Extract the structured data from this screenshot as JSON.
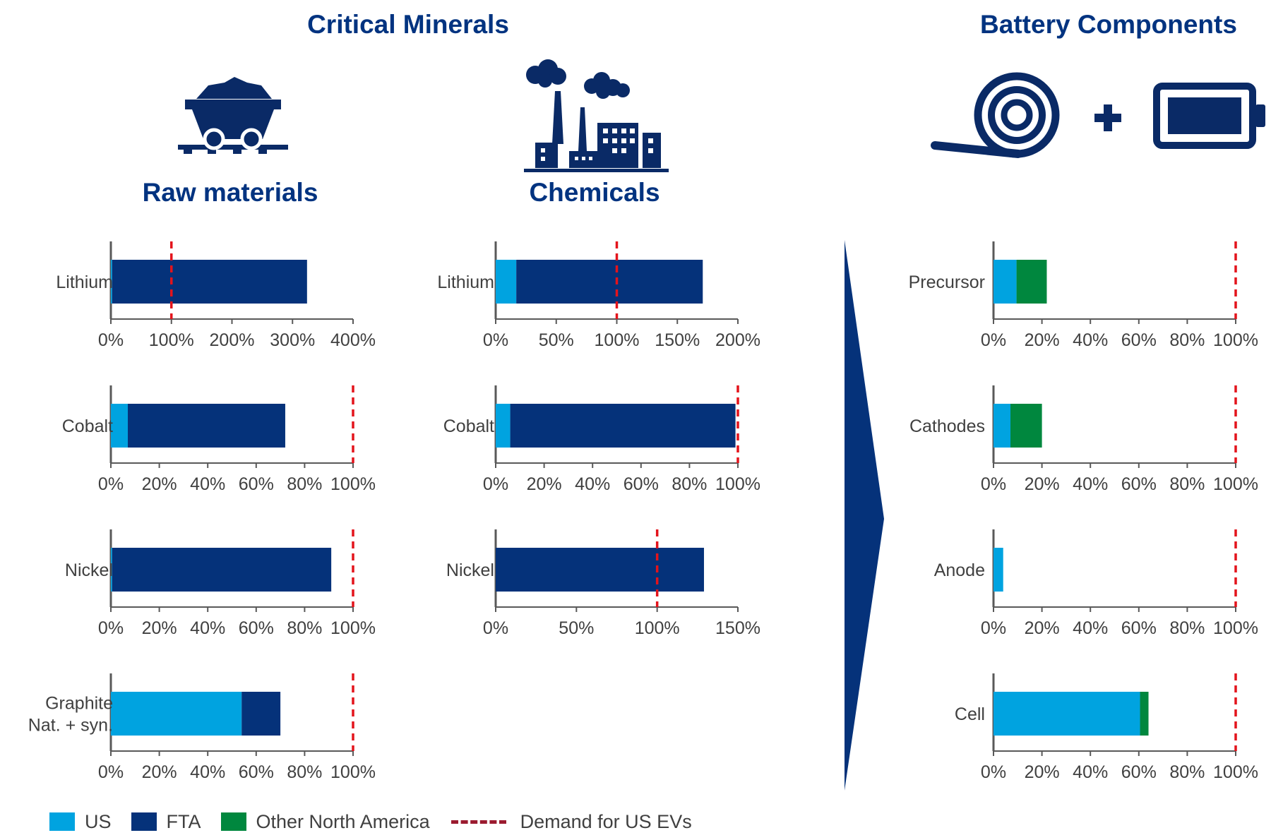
{
  "titles": {
    "critical_minerals": "Critical Minerals",
    "battery_components": "Battery Components",
    "raw_materials": "Raw materials",
    "chemicals": "Chemicals"
  },
  "legend": {
    "us": "US",
    "fta": "FTA",
    "other_na": "Other North America",
    "demand": "Demand for US EVs"
  },
  "colors": {
    "us": "#00a3e0",
    "fta": "#05327a",
    "other_na": "#00873e",
    "demand": "#e3141c",
    "title": "#003380",
    "axis": "#595959"
  },
  "chart_data": [
    {
      "type": "bar",
      "orientation": "horizontal",
      "stacked": true,
      "group": "Raw materials",
      "category": "Lithium",
      "xlim": [
        0,
        4
      ],
      "ticks": [
        "0%",
        "100%",
        "200%",
        "300%",
        "400%"
      ],
      "series": [
        {
          "name": "US",
          "value": 0.02
        },
        {
          "name": "FTA",
          "value": 3.22
        },
        {
          "name": "Other North America",
          "value": 0
        }
      ],
      "demand": 1.0
    },
    {
      "type": "bar",
      "orientation": "horizontal",
      "stacked": true,
      "group": "Raw materials",
      "category": "Cobalt",
      "xlim": [
        0,
        1
      ],
      "ticks": [
        "0%",
        "20%",
        "40%",
        "60%",
        "80%",
        "100%"
      ],
      "series": [
        {
          "name": "US",
          "value": 0.07
        },
        {
          "name": "FTA",
          "value": 0.65
        },
        {
          "name": "Other North America",
          "value": 0
        }
      ],
      "demand": 1.0
    },
    {
      "type": "bar",
      "orientation": "horizontal",
      "stacked": true,
      "group": "Raw materials",
      "category": "Nickel",
      "xlim": [
        0,
        1
      ],
      "ticks": [
        "0%",
        "20%",
        "40%",
        "60%",
        "80%",
        "100%"
      ],
      "series": [
        {
          "name": "US",
          "value": 0.005
        },
        {
          "name": "FTA",
          "value": 0.905
        },
        {
          "name": "Other North America",
          "value": 0
        }
      ],
      "demand": 1.0
    },
    {
      "type": "bar",
      "orientation": "horizontal",
      "stacked": true,
      "group": "Raw materials",
      "category": "Graphite\nNat. + syn.",
      "xlim": [
        0,
        1
      ],
      "ticks": [
        "0%",
        "20%",
        "40%",
        "60%",
        "80%",
        "100%"
      ],
      "series": [
        {
          "name": "US",
          "value": 0.54
        },
        {
          "name": "FTA",
          "value": 0.16
        },
        {
          "name": "Other North America",
          "value": 0
        }
      ],
      "demand": 1.0
    },
    {
      "type": "bar",
      "orientation": "horizontal",
      "stacked": true,
      "group": "Chemicals",
      "category": "Lithium",
      "xlim": [
        0,
        2
      ],
      "ticks": [
        "0%",
        "50%",
        "100%",
        "150%",
        "200%"
      ],
      "series": [
        {
          "name": "US",
          "value": 0.17
        },
        {
          "name": "FTA",
          "value": 1.54
        },
        {
          "name": "Other North America",
          "value": 0
        }
      ],
      "demand": 1.0
    },
    {
      "type": "bar",
      "orientation": "horizontal",
      "stacked": true,
      "group": "Chemicals",
      "category": "Cobalt",
      "xlim": [
        0,
        1
      ],
      "ticks": [
        "0%",
        "20%",
        "40%",
        "60%",
        "80%",
        "100%"
      ],
      "series": [
        {
          "name": "US",
          "value": 0.06
        },
        {
          "name": "FTA",
          "value": 0.93
        },
        {
          "name": "Other North America",
          "value": 0
        }
      ],
      "demand": 1.0
    },
    {
      "type": "bar",
      "orientation": "horizontal",
      "stacked": true,
      "group": "Chemicals",
      "category": "Nickel",
      "xlim": [
        0,
        1.5
      ],
      "ticks": [
        "0%",
        "50%",
        "100%",
        "150%"
      ],
      "series": [
        {
          "name": "US",
          "value": 0
        },
        {
          "name": "FTA",
          "value": 1.29
        },
        {
          "name": "Other North America",
          "value": 0
        }
      ],
      "demand": 1.0
    },
    {
      "type": "bar",
      "orientation": "horizontal",
      "stacked": true,
      "group": "Battery Components",
      "category": "Precursor",
      "xlim": [
        0,
        1
      ],
      "ticks": [
        "0%",
        "20%",
        "40%",
        "60%",
        "80%",
        "100%"
      ],
      "series": [
        {
          "name": "US",
          "value": 0.095
        },
        {
          "name": "FTA",
          "value": 0
        },
        {
          "name": "Other North America",
          "value": 0.125
        }
      ],
      "demand": 1.0
    },
    {
      "type": "bar",
      "orientation": "horizontal",
      "stacked": true,
      "group": "Battery Components",
      "category": "Cathodes",
      "xlim": [
        0,
        1
      ],
      "ticks": [
        "0%",
        "20%",
        "40%",
        "60%",
        "80%",
        "100%"
      ],
      "series": [
        {
          "name": "US",
          "value": 0.07
        },
        {
          "name": "FTA",
          "value": 0
        },
        {
          "name": "Other North America",
          "value": 0.13
        }
      ],
      "demand": 1.0
    },
    {
      "type": "bar",
      "orientation": "horizontal",
      "stacked": true,
      "group": "Battery Components",
      "category": "Anode",
      "xlim": [
        0,
        1
      ],
      "ticks": [
        "0%",
        "20%",
        "40%",
        "60%",
        "80%",
        "100%"
      ],
      "series": [
        {
          "name": "US",
          "value": 0.04
        },
        {
          "name": "FTA",
          "value": 0
        },
        {
          "name": "Other North America",
          "value": 0
        }
      ],
      "demand": 1.0
    },
    {
      "type": "bar",
      "orientation": "horizontal",
      "stacked": true,
      "group": "Battery Components",
      "category": "Cell",
      "xlim": [
        0,
        1
      ],
      "ticks": [
        "0%",
        "20%",
        "40%",
        "60%",
        "80%",
        "100%"
      ],
      "series": [
        {
          "name": "US",
          "value": 0.605
        },
        {
          "name": "FTA",
          "value": 0
        },
        {
          "name": "Other North America",
          "value": 0.035
        }
      ],
      "demand": 1.0
    }
  ]
}
